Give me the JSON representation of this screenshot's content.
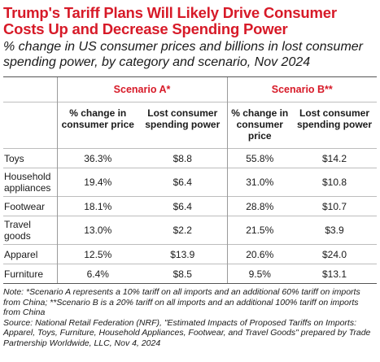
{
  "header": {
    "title": "Trump's Tariff Plans Will Likely Drive Consumer Costs Up and Decrease Spending Power",
    "subtitle": "% change in US consumer prices and billions in lost consumer spending power, by category and scenario, Nov 2024"
  },
  "chart_data": {
    "type": "table",
    "scenarios": [
      "Scenario A*",
      "Scenario B**"
    ],
    "columns": [
      "% change in consumer price",
      "Lost consumer spending power",
      "% change in consumer price",
      "Lost consumer spending power"
    ],
    "rows": [
      {
        "category": "Toys",
        "values": [
          "36.3%",
          "$8.8",
          "55.8%",
          "$14.2"
        ]
      },
      {
        "category": "Household appliances",
        "values": [
          "19.4%",
          "$6.4",
          "31.0%",
          "$10.8"
        ]
      },
      {
        "category": "Footwear",
        "values": [
          "18.1%",
          "$6.4",
          "28.8%",
          "$10.7"
        ]
      },
      {
        "category": "Travel goods",
        "values": [
          "13.0%",
          "$2.2",
          "21.5%",
          "$3.9"
        ]
      },
      {
        "category": "Apparel",
        "values": [
          "12.5%",
          "$13.9",
          "20.6%",
          "$24.0"
        ]
      },
      {
        "category": "Furniture",
        "values": [
          "6.4%",
          "$8.5",
          "9.5%",
          "$13.1"
        ]
      }
    ]
  },
  "footer": {
    "note": "Note: *Scenario A represents a 10% tariff on all imports and an additional 60% tariff on imports from China; **Scenario B is a 20% tariff on all imports and an additional 100% tariff on imports from China",
    "source": "Source: National Retail Federation (NRF), \"Estimated Impacts of Proposed Tariffs on Imports: Apparel, Toys, Furniture, Household Appliances, Footwear, and Travel Goods\" prepared by Trade Partnership Worldwide, LLC, Nov 4, 2024"
  }
}
